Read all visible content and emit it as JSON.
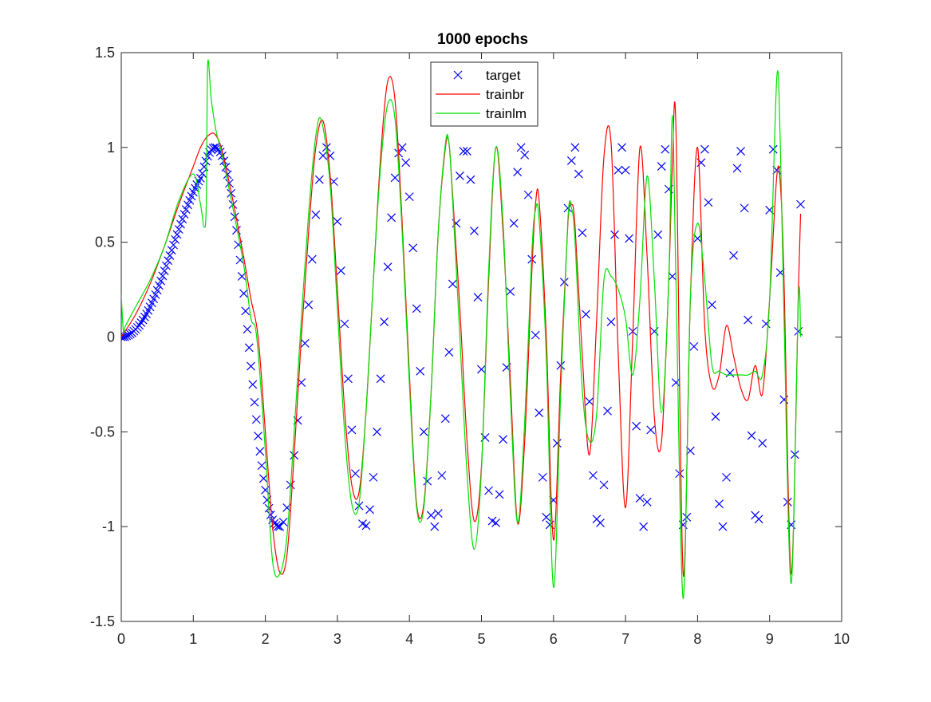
{
  "figure": {
    "background": "#ffffff"
  },
  "chart_data": {
    "type": "line",
    "title": "1000 epochs",
    "xlabel": "",
    "ylabel": "",
    "xlim": [
      0,
      10
    ],
    "ylim": [
      -1.5,
      1.5
    ],
    "xticks": [
      0,
      1,
      2,
      3,
      4,
      5,
      6,
      7,
      8,
      9,
      10
    ],
    "yticks": [
      -1.5,
      -1,
      -0.5,
      0,
      0.5,
      1,
      1.5
    ],
    "xtick_labels": [
      "0",
      "1",
      "2",
      "3",
      "4",
      "5",
      "6",
      "7",
      "8",
      "9",
      "10"
    ],
    "ytick_labels": [
      "-1.5",
      "-1",
      "-0.5",
      "0",
      "0.5",
      "1",
      "1.5"
    ],
    "grid": false,
    "legend_position": "top-center",
    "series": [
      {
        "name": "target",
        "style": "markers",
        "marker": "x",
        "color": "#0000ff",
        "x": [
          0.0,
          0.025,
          0.05,
          0.075,
          0.1,
          0.125,
          0.15,
          0.175,
          0.2,
          0.225,
          0.25,
          0.275,
          0.3,
          0.325,
          0.35,
          0.375,
          0.4,
          0.425,
          0.45,
          0.475,
          0.5,
          0.525,
          0.55,
          0.575,
          0.6,
          0.625,
          0.65,
          0.675,
          0.7,
          0.725,
          0.75,
          0.775,
          0.8,
          0.825,
          0.85,
          0.875,
          0.9,
          0.925,
          0.95,
          0.975,
          1.0,
          1.025,
          1.05,
          1.075,
          1.1,
          1.125,
          1.15,
          1.175,
          1.2,
          1.225,
          1.25,
          1.275,
          1.3,
          1.325,
          1.35,
          1.375,
          1.4,
          1.425,
          1.45,
          1.475,
          1.5,
          1.525,
          1.55,
          1.575,
          1.6,
          1.625,
          1.65,
          1.675,
          1.7,
          1.725,
          1.75,
          1.775,
          1.8,
          1.825,
          1.85,
          1.875,
          1.9,
          1.925,
          1.95,
          1.975,
          2.0,
          2.025,
          2.05,
          2.075,
          2.1,
          2.125,
          2.15,
          2.175,
          2.2,
          2.25,
          2.3,
          2.35,
          2.4,
          2.45,
          2.5,
          2.55,
          2.6,
          2.65,
          2.7,
          2.75,
          2.8,
          2.85,
          2.9,
          2.95,
          3.0,
          3.05,
          3.1,
          3.15,
          3.2,
          3.25,
          3.3,
          3.35,
          3.4,
          3.45,
          3.5,
          3.55,
          3.6,
          3.65,
          3.7,
          3.75,
          3.8,
          3.85,
          3.9,
          3.95,
          4.0,
          4.05,
          4.1,
          4.15,
          4.2,
          4.25,
          4.3,
          4.35,
          4.4,
          4.45,
          4.5,
          4.55,
          4.6,
          4.65,
          4.7,
          4.75,
          4.8,
          4.85,
          4.9,
          4.95,
          5.0,
          5.05,
          5.1,
          5.15,
          5.2,
          5.25,
          5.3,
          5.35,
          5.4,
          5.45,
          5.5,
          5.55,
          5.6,
          5.65,
          5.7,
          5.75,
          5.8,
          5.85,
          5.9,
          5.95,
          6.0,
          6.05,
          6.1,
          6.15,
          6.2,
          6.25,
          6.3,
          6.35,
          6.4,
          6.45,
          6.5,
          6.55,
          6.6,
          6.65,
          6.7,
          6.75,
          6.8,
          6.85,
          6.9,
          6.95,
          7.0,
          7.05,
          7.1,
          7.15,
          7.2,
          7.25,
          7.3,
          7.35,
          7.4,
          7.45,
          7.5,
          7.55,
          7.6,
          7.65,
          7.7,
          7.75,
          7.8,
          7.85,
          7.9,
          7.95,
          8.0,
          8.05,
          8.1,
          8.15,
          8.2,
          8.25,
          8.3,
          8.35,
          8.4,
          8.45,
          8.5,
          8.55,
          8.6,
          8.65,
          8.7,
          8.75,
          8.8,
          8.85,
          8.9,
          8.95,
          9.0,
          9.05,
          9.1,
          9.15,
          9.2,
          9.25,
          9.3,
          9.35,
          9.4,
          9.43
        ],
        "y": [
          0.0,
          0.001,
          0.002,
          0.006,
          0.01,
          0.016,
          0.022,
          0.031,
          0.04,
          0.051,
          0.062,
          0.076,
          0.09,
          0.106,
          0.122,
          0.14,
          0.159,
          0.18,
          0.201,
          0.224,
          0.247,
          0.272,
          0.296,
          0.322,
          0.349,
          0.376,
          0.403,
          0.43,
          0.458,
          0.486,
          0.514,
          0.541,
          0.568,
          0.595,
          0.622,
          0.648,
          0.673,
          0.697,
          0.721,
          0.743,
          0.764,
          0.785,
          0.804,
          0.822,
          0.838,
          0.863,
          0.898,
          0.928,
          0.953,
          0.973,
          0.988,
          0.997,
          1.0,
          0.998,
          0.99,
          0.976,
          0.956,
          0.929,
          0.896,
          0.857,
          0.811,
          0.758,
          0.699,
          0.634,
          0.563,
          0.487,
          0.406,
          0.32,
          0.23,
          0.137,
          0.041,
          -0.056,
          -0.154,
          -0.25,
          -0.344,
          -0.435,
          -0.522,
          -0.603,
          -0.678,
          -0.746,
          -0.807,
          -0.859,
          -0.903,
          -0.938,
          -0.964,
          -0.982,
          -0.993,
          -0.999,
          -1.0,
          -0.976,
          -0.9,
          -0.78,
          -0.624,
          -0.44,
          -0.24,
          -0.033,
          0.17,
          0.41,
          0.645,
          0.83,
          0.957,
          1.0,
          0.956,
          0.82,
          0.61,
          0.35,
          0.07,
          -0.22,
          -0.49,
          -0.72,
          -0.89,
          -0.985,
          -0.995,
          -0.91,
          -0.74,
          -0.5,
          -0.22,
          0.08,
          0.37,
          0.63,
          0.84,
          0.97,
          1.0,
          0.92,
          0.74,
          0.47,
          0.15,
          -0.18,
          -0.5,
          -0.76,
          -0.94,
          -1.0,
          -0.93,
          -0.73,
          -0.43,
          -0.08,
          0.28,
          0.6,
          0.85,
          0.98,
          0.98,
          0.83,
          0.56,
          0.21,
          -0.17,
          -0.53,
          -0.81,
          -0.97,
          -0.98,
          -0.83,
          -0.54,
          -0.16,
          0.24,
          0.6,
          0.87,
          1.0,
          0.96,
          0.75,
          0.41,
          0.01,
          -0.4,
          -0.74,
          -0.95,
          -0.99,
          -0.86,
          -0.56,
          -0.15,
          0.29,
          0.68,
          0.93,
          1.0,
          0.86,
          0.55,
          0.12,
          -0.34,
          -0.73,
          -0.96,
          -0.98,
          -0.78,
          -0.39,
          0.08,
          0.54,
          0.88,
          1.0,
          0.88,
          0.52,
          0.03,
          -0.47,
          -0.85,
          -1.0,
          -0.87,
          -0.49,
          0.03,
          0.54,
          0.9,
          0.99,
          0.78,
          0.32,
          -0.24,
          -0.72,
          -0.99,
          -0.95,
          -0.6,
          -0.05,
          0.52,
          0.92,
          0.99,
          0.71,
          0.17,
          -0.42,
          -0.88,
          -1.0,
          -0.74,
          -0.19,
          0.43,
          0.89,
          0.98,
          0.68,
          0.09,
          -0.52,
          -0.94,
          -0.96,
          -0.56,
          0.07,
          0.67,
          0.99,
          0.88,
          0.34,
          -0.33,
          -0.87,
          -0.99,
          -0.62,
          0.03,
          0.7
        ]
      },
      {
        "name": "trainbr",
        "style": "line",
        "color": "#ff0000",
        "x": [
          0.0,
          0.2,
          0.4,
          0.6,
          0.8,
          1.0,
          1.1,
          1.2,
          1.3,
          1.4,
          1.55,
          1.7,
          1.8,
          1.9,
          2.0,
          2.1,
          2.2,
          2.3,
          2.4,
          2.5,
          2.6,
          2.7,
          2.8,
          2.9,
          3.0,
          3.1,
          3.2,
          3.3,
          3.4,
          3.5,
          3.6,
          3.7,
          3.8,
          3.9,
          4.0,
          4.1,
          4.2,
          4.3,
          4.4,
          4.5,
          4.55,
          4.6,
          4.7,
          4.8,
          4.9,
          5.0,
          5.1,
          5.2,
          5.3,
          5.4,
          5.5,
          5.6,
          5.7,
          5.75,
          5.8,
          5.9,
          6.0,
          6.1,
          6.2,
          6.25,
          6.3,
          6.4,
          6.5,
          6.6,
          6.7,
          6.8,
          6.9,
          7.0,
          7.1,
          7.2,
          7.3,
          7.4,
          7.5,
          7.6,
          7.65,
          7.7,
          7.8,
          7.9,
          8.0,
          8.1,
          8.2,
          8.3,
          8.4,
          8.5,
          8.6,
          8.7,
          8.8,
          8.9,
          9.0,
          9.1,
          9.15,
          9.2,
          9.3,
          9.4,
          9.43
        ],
        "y": [
          0.0,
          0.12,
          0.28,
          0.48,
          0.7,
          0.9,
          1.0,
          1.06,
          1.07,
          0.98,
          0.72,
          0.42,
          0.2,
          0.0,
          -0.5,
          -1.0,
          -1.24,
          -1.15,
          -0.62,
          0.0,
          0.55,
          1.0,
          1.14,
          0.85,
          0.25,
          -0.38,
          -0.78,
          -0.82,
          -0.38,
          0.3,
          0.95,
          1.35,
          1.25,
          0.6,
          -0.2,
          -0.88,
          -0.88,
          -0.3,
          0.55,
          1.0,
          1.02,
          0.75,
          0.15,
          -0.55,
          -0.97,
          -0.68,
          0.3,
          1.0,
          0.55,
          -0.22,
          -0.98,
          -0.55,
          0.35,
          0.7,
          0.72,
          0.0,
          -1.07,
          -0.2,
          0.6,
          0.7,
          0.58,
          -0.1,
          -0.62,
          0.1,
          0.95,
          1.02,
          -0.1,
          -0.9,
          0.0,
          1.0,
          0.42,
          -0.42,
          -0.55,
          0.3,
          0.9,
          1.1,
          -1.25,
          0.2,
          1.0,
          0.05,
          -0.26,
          -0.2,
          0.06,
          -0.1,
          -0.27,
          -0.33,
          -0.15,
          -0.3,
          0.2,
          0.85,
          0.8,
          0.3,
          -1.25,
          0.25,
          0.65
        ]
      },
      {
        "name": "trainlm",
        "style": "line",
        "color": "#00e000",
        "x": [
          0.0,
          0.03,
          0.06,
          0.2,
          0.4,
          0.6,
          0.8,
          1.0,
          1.1,
          1.15,
          1.18,
          1.2,
          1.25,
          1.32,
          1.4,
          1.55,
          1.7,
          1.8,
          1.88,
          2.0,
          2.1,
          2.2,
          2.3,
          2.4,
          2.5,
          2.6,
          2.7,
          2.78,
          2.9,
          3.0,
          3.1,
          3.2,
          3.3,
          3.4,
          3.5,
          3.6,
          3.7,
          3.8,
          3.9,
          4.0,
          4.1,
          4.2,
          4.3,
          4.4,
          4.5,
          4.55,
          4.6,
          4.7,
          4.8,
          4.9,
          5.0,
          5.1,
          5.2,
          5.3,
          5.4,
          5.5,
          5.6,
          5.7,
          5.75,
          5.8,
          5.9,
          6.0,
          6.1,
          6.2,
          6.25,
          6.3,
          6.4,
          6.5,
          6.6,
          6.7,
          6.8,
          6.9,
          7.0,
          7.1,
          7.2,
          7.3,
          7.4,
          7.5,
          7.6,
          7.65,
          7.7,
          7.8,
          7.9,
          8.0,
          8.1,
          8.2,
          8.3,
          8.4,
          8.5,
          8.6,
          8.7,
          8.8,
          8.9,
          9.0,
          9.1,
          9.15,
          9.2,
          9.3,
          9.4,
          9.43
        ],
        "y": [
          0.22,
          0.03,
          0.06,
          0.16,
          0.3,
          0.48,
          0.72,
          0.86,
          0.7,
          0.58,
          0.7,
          1.44,
          1.25,
          1.08,
          0.96,
          0.68,
          0.38,
          0.1,
          0.0,
          -0.6,
          -1.18,
          -1.25,
          -1.05,
          -0.5,
          0.1,
          0.65,
          1.06,
          1.14,
          0.8,
          0.15,
          -0.5,
          -0.88,
          -0.88,
          -0.38,
          0.3,
          0.9,
          1.23,
          1.15,
          0.55,
          -0.25,
          -0.9,
          -0.9,
          -0.3,
          0.55,
          1.02,
          1.02,
          0.72,
          0.0,
          -0.72,
          -1.12,
          -0.7,
          0.35,
          1.0,
          0.6,
          -0.3,
          -0.98,
          -0.45,
          0.45,
          0.67,
          0.62,
          -0.1,
          -1.32,
          -0.3,
          0.62,
          0.68,
          0.5,
          -0.28,
          -0.55,
          -0.4,
          0.3,
          0.32,
          0.25,
          0.1,
          -0.2,
          0.2,
          0.85,
          0.3,
          -0.4,
          0.3,
          1.17,
          0.3,
          -1.38,
          0.2,
          0.6,
          0.3,
          -0.15,
          -0.18,
          -0.2,
          -0.2,
          -0.2,
          -0.2,
          -0.18,
          -0.2,
          0.2,
          1.37,
          1.0,
          0.1,
          -1.3,
          0.2,
          0.0
        ]
      }
    ]
  }
}
